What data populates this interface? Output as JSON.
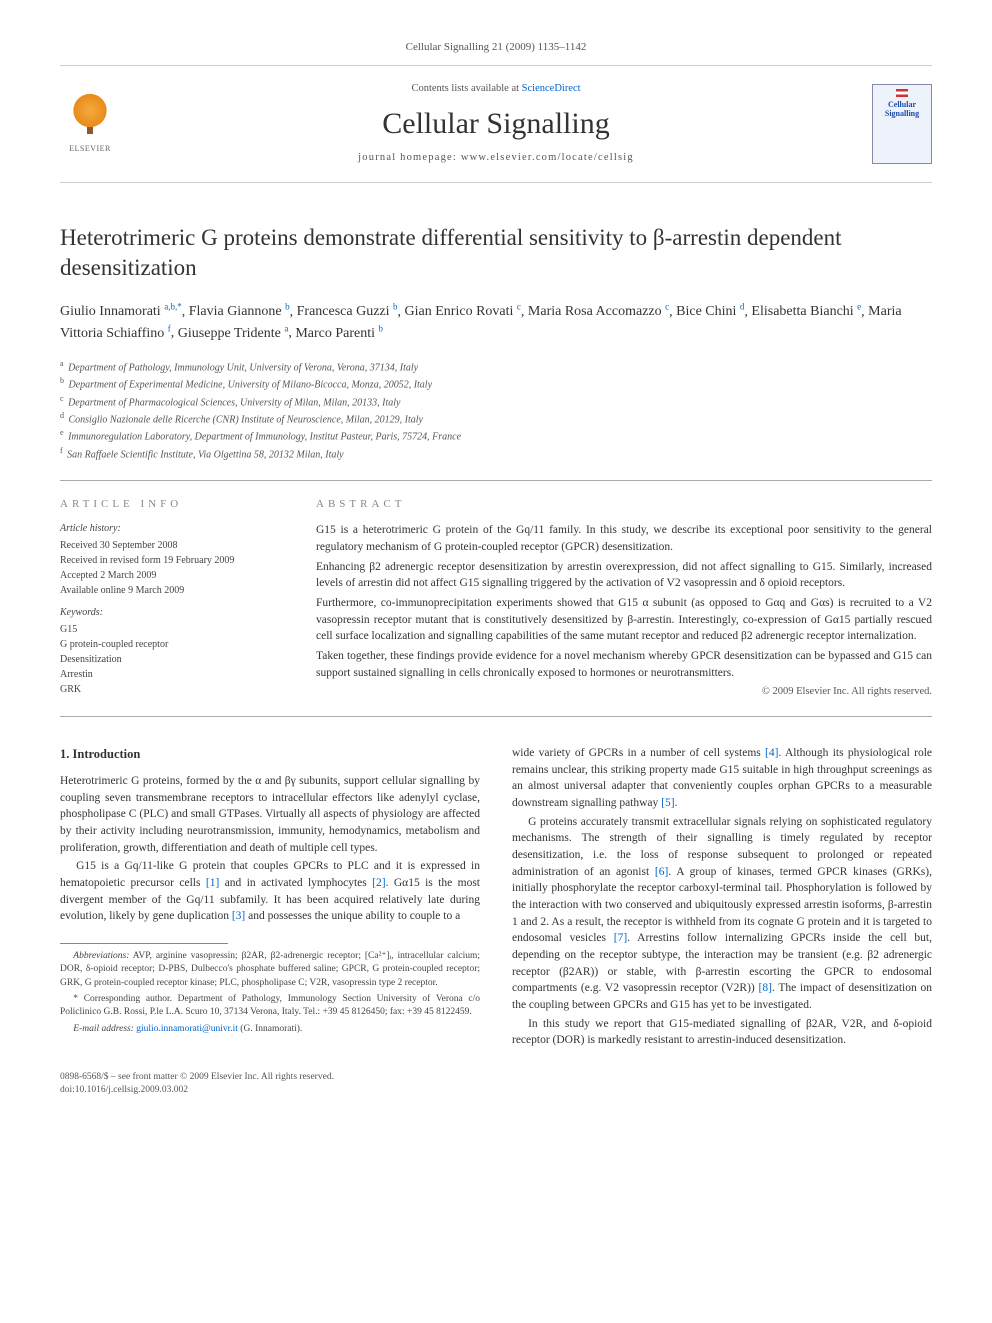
{
  "citation": "Cellular Signalling 21 (2009) 1135–1142",
  "header": {
    "contents_prefix": "Contents lists available at ",
    "contents_link": "ScienceDirect",
    "journal_name": "Cellular Signalling",
    "homepage_label": "journal homepage: www.elsevier.com/locate/cellsig",
    "elsevier_label": "ELSEVIER",
    "cover_title": "Cellular Signalling"
  },
  "article": {
    "title": "Heterotrimeric G proteins demonstrate differential sensitivity to β-arrestin dependent desensitization"
  },
  "authors": [
    {
      "name": "Giulio Innamorati",
      "sup": "a,b,",
      "mark": "*"
    },
    {
      "name": "Flavia Giannone",
      "sup": "b"
    },
    {
      "name": "Francesca Guzzi",
      "sup": "b"
    },
    {
      "name": "Gian Enrico Rovati",
      "sup": "c"
    },
    {
      "name": "Maria Rosa Accomazzo",
      "sup": "c"
    },
    {
      "name": "Bice Chini",
      "sup": "d"
    },
    {
      "name": "Elisabetta Bianchi",
      "sup": "e"
    },
    {
      "name": "Maria Vittoria Schiaffino",
      "sup": "f"
    },
    {
      "name": "Giuseppe Tridente",
      "sup": "a"
    },
    {
      "name": "Marco Parenti",
      "sup": "b"
    }
  ],
  "affiliations": [
    {
      "sup": "a",
      "text": "Department of Pathology, Immunology Unit, University of Verona, Verona, 37134, Italy"
    },
    {
      "sup": "b",
      "text": "Department of Experimental Medicine, University of Milano-Bicocca, Monza, 20052, Italy"
    },
    {
      "sup": "c",
      "text": "Department of Pharmacological Sciences, University of Milan, Milan, 20133, Italy"
    },
    {
      "sup": "d",
      "text": "Consiglio Nazionale delle Ricerche (CNR) Institute of Neuroscience, Milan, 20129, Italy"
    },
    {
      "sup": "e",
      "text": "Immunoregulation Laboratory, Department of Immunology, Institut Pasteur, Paris, 75724, France"
    },
    {
      "sup": "f",
      "text": "San Raffaele Scientific Institute, Via Olgettina 58, 20132 Milan, Italy"
    }
  ],
  "article_info": {
    "heading": "ARTICLE INFO",
    "history_label": "Article history:",
    "history": [
      "Received 30 September 2008",
      "Received in revised form 19 February 2009",
      "Accepted 2 March 2009",
      "Available online 9 March 2009"
    ],
    "keywords_label": "Keywords:",
    "keywords": [
      "G15",
      "G protein-coupled receptor",
      "Desensitization",
      "Arrestin",
      "GRK"
    ]
  },
  "abstract": {
    "heading": "ABSTRACT",
    "paragraphs": [
      "G15 is a heterotrimeric G protein of the Gq/11 family. In this study, we describe its exceptional poor sensitivity to the general regulatory mechanism of G protein-coupled receptor (GPCR) desensitization.",
      "Enhancing β2 adrenergic receptor desensitization by arrestin overexpression, did not affect signalling to G15. Similarly, increased levels of arrestin did not affect G15 signalling triggered by the activation of V2 vasopressin and δ opioid receptors.",
      "Furthermore, co-immunoprecipitation experiments showed that G15 α subunit (as opposed to Gαq and Gαs) is recruited to a V2 vasopressin receptor mutant that is constitutively desensitized by β-arrestin. Interestingly, co-expression of Gα15 partially rescued cell surface localization and signalling capabilities of the same mutant receptor and reduced β2 adrenergic receptor internalization.",
      "Taken together, these findings provide evidence for a novel mechanism whereby GPCR desensitization can be bypassed and G15 can support sustained signalling in cells chronically exposed to hormones or neurotransmitters."
    ],
    "copyright": "© 2009 Elsevier Inc. All rights reserved."
  },
  "body": {
    "section_heading": "1. Introduction",
    "paragraphs": [
      "Heterotrimeric G proteins, formed by the α and βγ subunits, support cellular signalling by coupling seven transmembrane receptors to intracellular effectors like adenylyl cyclase, phospholipase C (PLC) and small GTPases. Virtually all aspects of physiology are affected by their activity including neurotransmission, immunity, hemodynamics, metabolism and proliferation, growth, differentiation and death of multiple cell types.",
      "G15 is a Gq/11-like G protein that couples GPCRs to PLC and it is expressed in hematopoietic precursor cells [1] and in activated lymphocytes [2]. Gα15 is the most divergent member of the Gq/11 subfamily. It has been acquired relatively late during evolution, likely by gene duplication [3] and possesses the unique ability to couple to a",
      "wide variety of GPCRs in a number of cell systems [4]. Although its physiological role remains unclear, this striking property made G15 suitable in high throughput screenings as an almost universal adapter that conveniently couples orphan GPCRs to a measurable downstream signalling pathway [5].",
      "G proteins accurately transmit extracellular signals relying on sophisticated regulatory mechanisms. The strength of their signalling is timely regulated by receptor desensitization, i.e. the loss of response subsequent to prolonged or repeated administration of an agonist [6]. A group of kinases, termed GPCR kinases (GRKs), initially phosphorylate the receptor carboxyl-terminal tail. Phosphorylation is followed by the interaction with two conserved and ubiquitously expressed arrestin isoforms, β-arrestin 1 and 2. As a result, the receptor is withheld from its cognate G protein and it is targeted to endosomal vesicles [7]. Arrestins follow internalizing GPCRs inside the cell but, depending on the receptor subtype, the interaction may be transient (e.g. β2 adrenergic receptor (β2AR)) or stable, with β-arrestin escorting the GPCR to endosomal compartments (e.g. V2 vasopressin receptor (V2R)) [8]. The impact of desensitization on the coupling between GPCRs and G15 has yet to be investigated.",
      "In this study we report that G15-mediated signalling of β2AR, V2R, and δ-opioid receptor (DOR) is markedly resistant to arrestin-induced desensitization."
    ],
    "refs": {
      "1": "[1]",
      "2": "[2]",
      "3": "[3]",
      "4": "[4]",
      "5": "[5]",
      "6": "[6]",
      "7": "[7]",
      "8": "[8]"
    }
  },
  "footnotes": {
    "abbrev_label": "Abbreviations:",
    "abbrev_text": " AVP, arginine vasopressin; β2AR, β2-adrenergic receptor; [Ca²⁺]ᵢ, intracellular calcium; DOR, δ-opioid receptor; D-PBS, Dulbecco's phosphate buffered saline; GPCR, G protein-coupled receptor; GRK, G protein-coupled receptor kinase; PLC, phospholipase C; V2R, vasopressin type 2 receptor.",
    "corr_label": "* Corresponding author.",
    "corr_text": " Department of Pathology, Immunology Section University of Verona c/o Policlinico G.B. Rossi, P.le L.A. Scuro 10, 37134 Verona, Italy. Tel.: +39 45 8126450; fax: +39 45 8122459.",
    "email_label": "E-mail address:",
    "email": " giulio.innamorati@univr.it",
    "email_suffix": " (G. Innamorati)."
  },
  "footer": {
    "line1": "0898-6568/$ – see front matter © 2009 Elsevier Inc. All rights reserved.",
    "line2": "doi:10.1016/j.cellsig.2009.03.002"
  }
}
